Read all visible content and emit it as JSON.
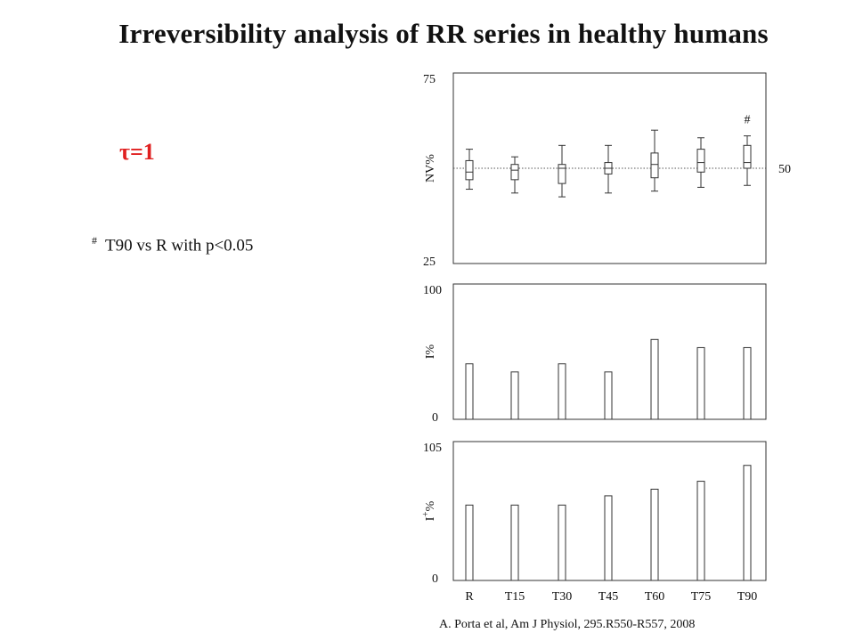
{
  "slide": {
    "title": "Irreversibility analysis of RR series in healthy humans",
    "tau_label": "τ=1",
    "note_mark": "#",
    "note_text": "T90 vs R with p<0.05",
    "citation": "A. Porta et al, Am J Physiol, 295.R550-R557, 2008"
  },
  "chart_data": [
    {
      "type": "box",
      "ylabel": "NV%",
      "ylim": [
        25,
        75
      ],
      "reference_line": {
        "value": 50,
        "label": "50"
      },
      "tick_labels": [
        "75",
        "25"
      ],
      "categories": [
        "R",
        "T15",
        "T30",
        "T45",
        "T60",
        "T75",
        "T90"
      ],
      "boxes": [
        {
          "min": 44.5,
          "q1": 47.0,
          "median": 49.0,
          "q3": 52.0,
          "max": 55.0
        },
        {
          "min": 43.5,
          "q1": 47.0,
          "median": 49.5,
          "q3": 51.0,
          "max": 53.0
        },
        {
          "min": 42.5,
          "q1": 46.0,
          "median": 50.0,
          "q3": 51.0,
          "max": 56.0
        },
        {
          "min": 43.5,
          "q1": 48.5,
          "median": 50.0,
          "q3": 51.5,
          "max": 56.0
        },
        {
          "min": 44.0,
          "q1": 47.5,
          "median": 51.0,
          "q3": 54.0,
          "max": 60.0
        },
        {
          "min": 45.0,
          "q1": 49.0,
          "median": 51.5,
          "q3": 55.0,
          "max": 58.0
        },
        {
          "min": 45.5,
          "q1": 50.0,
          "median": 51.5,
          "q3": 56.0,
          "max": 58.5
        }
      ],
      "annotations": [
        {
          "category": "T90",
          "text": "#"
        }
      ]
    },
    {
      "type": "bar",
      "ylabel": "I%",
      "ylim": [
        0,
        100
      ],
      "tick_labels": [
        "100",
        "0"
      ],
      "categories": [
        "R",
        "T15",
        "T30",
        "T45",
        "T60",
        "T75",
        "T90"
      ],
      "values": [
        41,
        35,
        41,
        35,
        59,
        53,
        53
      ]
    },
    {
      "type": "bar",
      "ylabel": "I",
      "ylabel_sup": "+",
      "ylabel_suffix": "%",
      "ylim": [
        0,
        105
      ],
      "tick_labels": [
        "105",
        "0"
      ],
      "categories": [
        "R",
        "T15",
        "T30",
        "T45",
        "T60",
        "T75",
        "T90"
      ],
      "xtick_labels": [
        "R",
        "T15",
        "T30",
        "T45",
        "T60",
        "T75",
        "T90"
      ],
      "values": [
        57,
        57,
        57,
        64,
        69,
        75,
        87
      ]
    }
  ]
}
